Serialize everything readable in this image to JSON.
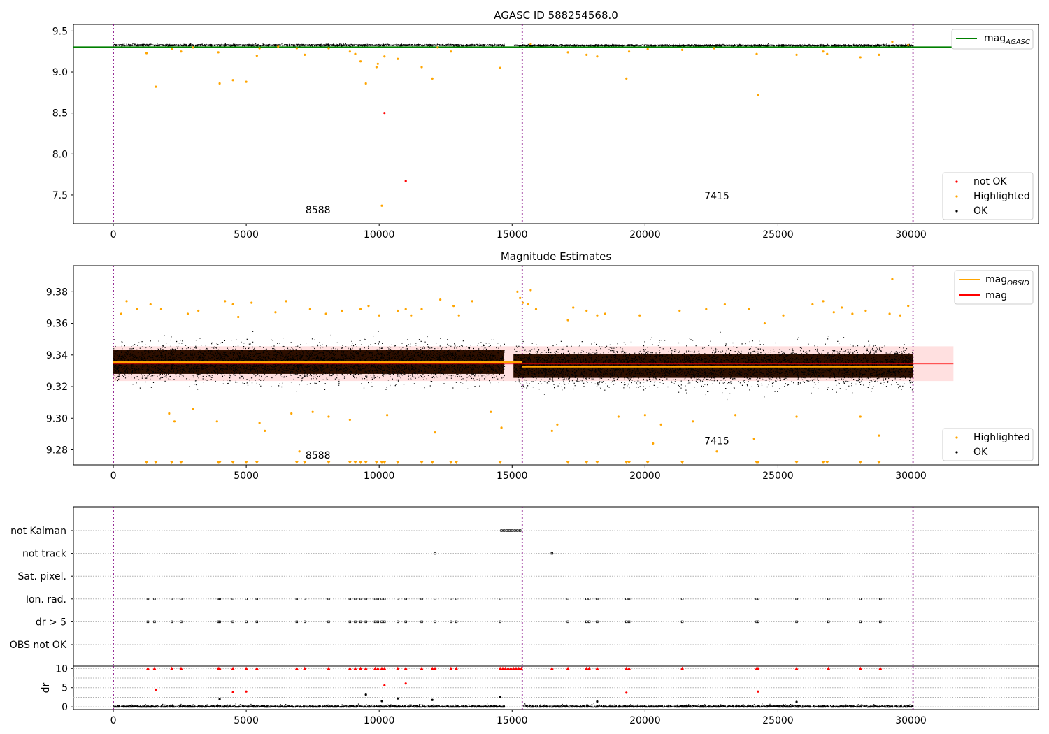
{
  "chart_data": [
    {
      "type": "scatter",
      "title": "AGASC ID 588254568.0",
      "xlim": [
        -1500,
        34800
      ],
      "ylim": [
        7.15,
        9.58
      ],
      "xticks": [
        "0",
        "5000",
        "10000",
        "15000",
        "20000",
        "25000",
        "30000"
      ],
      "yticks": [
        "7.5",
        "8.0",
        "8.5",
        "9.0",
        "9.5"
      ],
      "obs_boundaries": [
        0,
        15380,
        30080
      ],
      "obs_labels": [
        {
          "text": "8588",
          "x": 7700,
          "y": 7.28
        },
        {
          "text": "7415",
          "x": 22700,
          "y": 7.45
        }
      ],
      "reference_line": {
        "name": "mag_AGASC",
        "y": 9.305,
        "color": "#008000"
      },
      "band_levels": [
        {
          "x0": 0,
          "x1": 14700,
          "center": 9.333,
          "spread": 0.012
        },
        {
          "x0": 15050,
          "x1": 30080,
          "center": 9.329,
          "spread": 0.012
        }
      ],
      "series": [
        {
          "name": "not OK",
          "color": "#ff0000",
          "points": [
            [
              10200,
              8.5
            ],
            [
              11000,
              7.67
            ]
          ]
        },
        {
          "name": "Highlighted",
          "color": "#ffa500",
          "points": [
            [
              1250,
              9.23
            ],
            [
              1600,
              8.82
            ],
            [
              2200,
              9.28
            ],
            [
              2550,
              9.25
            ],
            [
              3000,
              9.3
            ],
            [
              3950,
              9.24
            ],
            [
              4000,
              8.86
            ],
            [
              4500,
              8.9
            ],
            [
              5000,
              8.88
            ],
            [
              5400,
              9.2
            ],
            [
              5500,
              9.29
            ],
            [
              6200,
              9.31
            ],
            [
              6900,
              9.29
            ],
            [
              7200,
              9.21
            ],
            [
              8100,
              9.29
            ],
            [
              8900,
              9.25
            ],
            [
              9100,
              9.22
            ],
            [
              9300,
              9.13
            ],
            [
              9500,
              8.86
            ],
            [
              9900,
              9.06
            ],
            [
              9950,
              9.1
            ],
            [
              10100,
              7.37
            ],
            [
              10200,
              9.19
            ],
            [
              10700,
              9.16
            ],
            [
              11600,
              9.06
            ],
            [
              12000,
              8.92
            ],
            [
              12200,
              9.3
            ],
            [
              12700,
              9.25
            ],
            [
              14550,
              9.05
            ],
            [
              15700,
              9.34
            ],
            [
              17100,
              9.24
            ],
            [
              17800,
              9.21
            ],
            [
              18200,
              9.19
            ],
            [
              19300,
              8.92
            ],
            [
              19400,
              9.25
            ],
            [
              20100,
              9.28
            ],
            [
              21400,
              9.27
            ],
            [
              22600,
              9.29
            ],
            [
              24200,
              9.22
            ],
            [
              24250,
              8.72
            ],
            [
              25700,
              9.21
            ],
            [
              26700,
              9.25
            ],
            [
              26850,
              9.22
            ],
            [
              28100,
              9.18
            ],
            [
              28800,
              9.21
            ],
            [
              29300,
              9.37
            ],
            [
              29900,
              9.33
            ]
          ]
        },
        {
          "name": "OK",
          "color": "#000000",
          "points": []
        }
      ],
      "legend": [
        "not OK",
        "Highlighted",
        "OK"
      ],
      "legend_position": "lower right",
      "line_legend_position": "upper right"
    },
    {
      "type": "scatter",
      "title": "Magnitude Estimates",
      "xlim": [
        -1500,
        34800
      ],
      "ylim": [
        9.2705,
        9.3965
      ],
      "xticks": [
        "0",
        "5000",
        "10000",
        "15000",
        "20000",
        "25000",
        "30000"
      ],
      "yticks": [
        "9.28",
        "9.30",
        "9.32",
        "9.34",
        "9.36",
        "9.38"
      ],
      "obs_boundaries": [
        0,
        15380,
        30080
      ],
      "obs_labels": [
        {
          "text": "8588",
          "x": 7700,
          "y": 9.2745
        },
        {
          "text": "7415",
          "x": 22700,
          "y": 9.2835
        }
      ],
      "mag": {
        "name": "mag",
        "y": 9.3345,
        "x_end": 31600,
        "band": [
          9.3235,
          9.3455
        ],
        "color": "#ff0000"
      },
      "mag_obsid": {
        "name": "mag_OBSID",
        "color": "#ffa500",
        "segments": [
          {
            "x0": 0,
            "x1": 15380,
            "y": 9.3355
          },
          {
            "x0": 15380,
            "x1": 30080,
            "y": 9.3325
          }
        ]
      },
      "band_levels": [
        {
          "x0": 0,
          "x1": 14700,
          "center": 9.3355,
          "spread": 0.0115
        },
        {
          "x0": 15050,
          "x1": 30080,
          "center": 9.333,
          "spread": 0.0125
        }
      ],
      "series": [
        {
          "name": "Highlighted",
          "color": "#ffa500",
          "points": [
            [
              300,
              9.366
            ],
            [
              500,
              9.374
            ],
            [
              900,
              9.369
            ],
            [
              1400,
              9.372
            ],
            [
              1800,
              9.369
            ],
            [
              2100,
              9.303
            ],
            [
              2300,
              9.298
            ],
            [
              2800,
              9.366
            ],
            [
              3000,
              9.306
            ],
            [
              3200,
              9.368
            ],
            [
              3900,
              9.298
            ],
            [
              4200,
              9.374
            ],
            [
              4500,
              9.372
            ],
            [
              4700,
              9.364
            ],
            [
              5200,
              9.373
            ],
            [
              5500,
              9.297
            ],
            [
              5700,
              9.292
            ],
            [
              6100,
              9.367
            ],
            [
              6500,
              9.374
            ],
            [
              6700,
              9.303
            ],
            [
              7000,
              9.279
            ],
            [
              7400,
              9.369
            ],
            [
              7500,
              9.304
            ],
            [
              8000,
              9.366
            ],
            [
              8100,
              9.301
            ],
            [
              8600,
              9.368
            ],
            [
              8900,
              9.299
            ],
            [
              9300,
              9.369
            ],
            [
              9600,
              9.371
            ],
            [
              10000,
              9.365
            ],
            [
              10300,
              9.302
            ],
            [
              10700,
              9.368
            ],
            [
              11000,
              9.369
            ],
            [
              11200,
              9.365
            ],
            [
              11600,
              9.369
            ],
            [
              12100,
              9.291
            ],
            [
              12300,
              9.375
            ],
            [
              12800,
              9.371
            ],
            [
              13000,
              9.365
            ],
            [
              13500,
              9.374
            ],
            [
              14200,
              9.304
            ],
            [
              14600,
              9.294
            ],
            [
              15200,
              9.38
            ],
            [
              15300,
              9.376
            ],
            [
              15400,
              9.373
            ],
            [
              15600,
              9.372
            ],
            [
              15700,
              9.381
            ],
            [
              15900,
              9.369
            ],
            [
              16500,
              9.292
            ],
            [
              16700,
              9.296
            ],
            [
              17100,
              9.362
            ],
            [
              17300,
              9.37
            ],
            [
              17800,
              9.368
            ],
            [
              18200,
              9.365
            ],
            [
              18500,
              9.366
            ],
            [
              19000,
              9.301
            ],
            [
              19800,
              9.365
            ],
            [
              20000,
              9.302
            ],
            [
              20300,
              9.284
            ],
            [
              20600,
              9.296
            ],
            [
              21300,
              9.368
            ],
            [
              21800,
              9.298
            ],
            [
              22300,
              9.369
            ],
            [
              22700,
              9.279
            ],
            [
              23000,
              9.372
            ],
            [
              23400,
              9.302
            ],
            [
              23900,
              9.369
            ],
            [
              24100,
              9.287
            ],
            [
              24500,
              9.36
            ],
            [
              25200,
              9.365
            ],
            [
              25700,
              9.301
            ],
            [
              26300,
              9.372
            ],
            [
              26700,
              9.374
            ],
            [
              27100,
              9.367
            ],
            [
              27400,
              9.37
            ],
            [
              27800,
              9.366
            ],
            [
              28100,
              9.301
            ],
            [
              28300,
              9.368
            ],
            [
              28800,
              9.289
            ],
            [
              29200,
              9.366
            ],
            [
              29300,
              9.388
            ],
            [
              29600,
              9.365
            ],
            [
              29900,
              9.371
            ]
          ]
        },
        {
          "name": "OK",
          "color": "#000000",
          "points": []
        }
      ],
      "clipped_markers_x": [
        1250,
        1600,
        2200,
        2550,
        3950,
        4000,
        4500,
        5000,
        5400,
        6900,
        7200,
        8100,
        8900,
        9100,
        9300,
        9500,
        9900,
        10100,
        10200,
        10700,
        11600,
        12000,
        12700,
        12900,
        14550,
        17100,
        17800,
        18200,
        19300,
        19400,
        20100,
        21400,
        24200,
        24250,
        25700,
        26700,
        26850,
        28100,
        28800
      ],
      "legend": [
        "Highlighted",
        "OK"
      ],
      "legend_position": "lower right",
      "line_legend_position": "upper right"
    },
    {
      "type": "scatter",
      "title": "",
      "xlim": [
        -1500,
        34800
      ],
      "xticks": [
        "0",
        "5000",
        "10000",
        "15000",
        "20000",
        "25000",
        "30000"
      ],
      "obs_boundaries": [
        0,
        15380,
        30080
      ],
      "flag_rows": [
        "not Kalman",
        "not track",
        "Sat. pixel.",
        "Ion. rad.",
        "dr > 5",
        "OBS not OK"
      ],
      "flags": {
        "not Kalman": [
          14600,
          14700,
          14800,
          14900,
          15000,
          15100,
          15200,
          15300
        ],
        "not track": [
          12100,
          16500
        ],
        "Sat. pixel.": [],
        "Ion. rad.": [
          1300,
          1550,
          2200,
          2550,
          3950,
          4000,
          4500,
          5000,
          5400,
          6900,
          7200,
          8100,
          8900,
          9100,
          9300,
          9500,
          9850,
          9950,
          10100,
          10200,
          10700,
          11000,
          11600,
          12100,
          12700,
          12900,
          14550,
          17100,
          17800,
          17900,
          18200,
          19300,
          19400,
          21400,
          24200,
          24250,
          25700,
          26900,
          28100,
          28850
        ],
        "dr > 5": [
          1300,
          1550,
          2200,
          2550,
          3950,
          4000,
          4500,
          5000,
          5400,
          6900,
          7200,
          8100,
          8900,
          9100,
          9300,
          9500,
          9850,
          9950,
          10100,
          10200,
          10700,
          11000,
          11600,
          12100,
          12700,
          12900,
          14550,
          17100,
          17800,
          17900,
          18200,
          19300,
          19400,
          21400,
          24200,
          24250,
          25700,
          26900,
          28100,
          28850
        ],
        "OBS not OK": []
      }
    },
    {
      "type": "scatter",
      "title": "",
      "ylabel": "dr",
      "xlim": [
        -1500,
        34800
      ],
      "ylim": [
        -0.7,
        10.6
      ],
      "xticks": [
        "0",
        "5000",
        "10000",
        "15000",
        "20000",
        "25000",
        "30000"
      ],
      "yticks": [
        "0",
        "5",
        "10"
      ],
      "obs_boundaries": [
        0,
        15380,
        30080
      ],
      "clip_level": 10,
      "clipped_markers_x": [
        1300,
        1550,
        2200,
        2550,
        3950,
        4000,
        4500,
        5000,
        5400,
        6900,
        7200,
        8100,
        8900,
        9100,
        9300,
        9500,
        9850,
        9950,
        10100,
        10200,
        10700,
        11000,
        11600,
        12000,
        12100,
        12700,
        12900,
        14550,
        14650,
        14750,
        14850,
        14950,
        15050,
        15150,
        15250,
        15350,
        16500,
        17100,
        17800,
        17900,
        18200,
        19300,
        19400,
        21400,
        24200,
        24250,
        25700,
        26900,
        28100,
        28850
      ],
      "series": [
        {
          "name": "not OK",
          "color": "#ff0000",
          "points": [
            [
              1600,
              4.5
            ],
            [
              4500,
              3.8
            ],
            [
              5000,
              4.0
            ],
            [
              10200,
              5.6
            ],
            [
              11000,
              6.1
            ],
            [
              19300,
              3.7
            ],
            [
              24250,
              4.0
            ]
          ]
        },
        {
          "name": "OK",
          "color": "#000000",
          "points": [
            [
              4000,
              2.0
            ],
            [
              9500,
              3.2
            ],
            [
              10100,
              1.5
            ],
            [
              10700,
              2.2
            ],
            [
              12000,
              1.8
            ],
            [
              14550,
              2.5
            ],
            [
              18200,
              1.4
            ],
            [
              25700,
              1.3
            ]
          ]
        }
      ]
    }
  ]
}
